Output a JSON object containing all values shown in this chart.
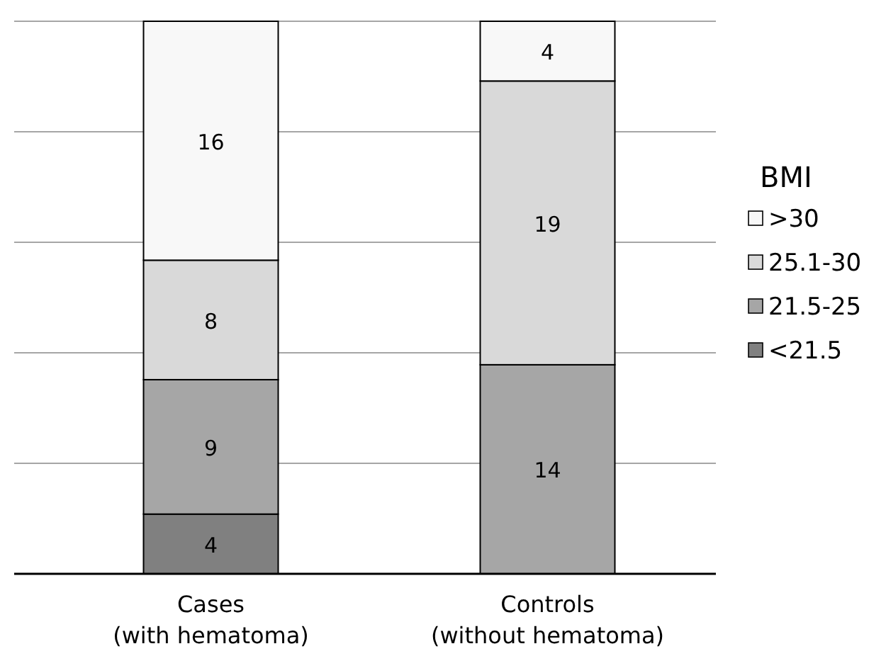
{
  "chart_data": {
    "type": "bar",
    "stacked": true,
    "categories": [
      "Cases\n(with hematoma)",
      "Controls\n(without hematoma)"
    ],
    "series": [
      {
        "name": "<21.5",
        "color": "#808080",
        "values": [
          4,
          0
        ],
        "value_labels": [
          "4",
          null
        ]
      },
      {
        "name": "21.5-25",
        "color": "#a6a6a6",
        "values": [
          9,
          14
        ],
        "value_labels": [
          "9",
          "14"
        ]
      },
      {
        "name": "25.1-30",
        "color": "#d9d9d9",
        "values": [
          8,
          19
        ],
        "value_labels": [
          "8",
          "19"
        ]
      },
      {
        "name": ">30",
        "color": "#f8f8f8",
        "values": [
          16,
          4
        ],
        "value_labels": [
          "16",
          "4"
        ]
      }
    ],
    "ylim": [
      0,
      37
    ],
    "yticks": [
      {
        "value": 7.4,
        "label": null
      },
      {
        "value": 14.8,
        "label": null
      },
      {
        "value": 22.2,
        "label": null
      },
      {
        "value": 29.6,
        "label": null
      },
      {
        "value": 37,
        "label": null
      }
    ],
    "tick_labels": "x",
    "grid": "y",
    "legend": "right",
    "legend_title": "BMI"
  }
}
